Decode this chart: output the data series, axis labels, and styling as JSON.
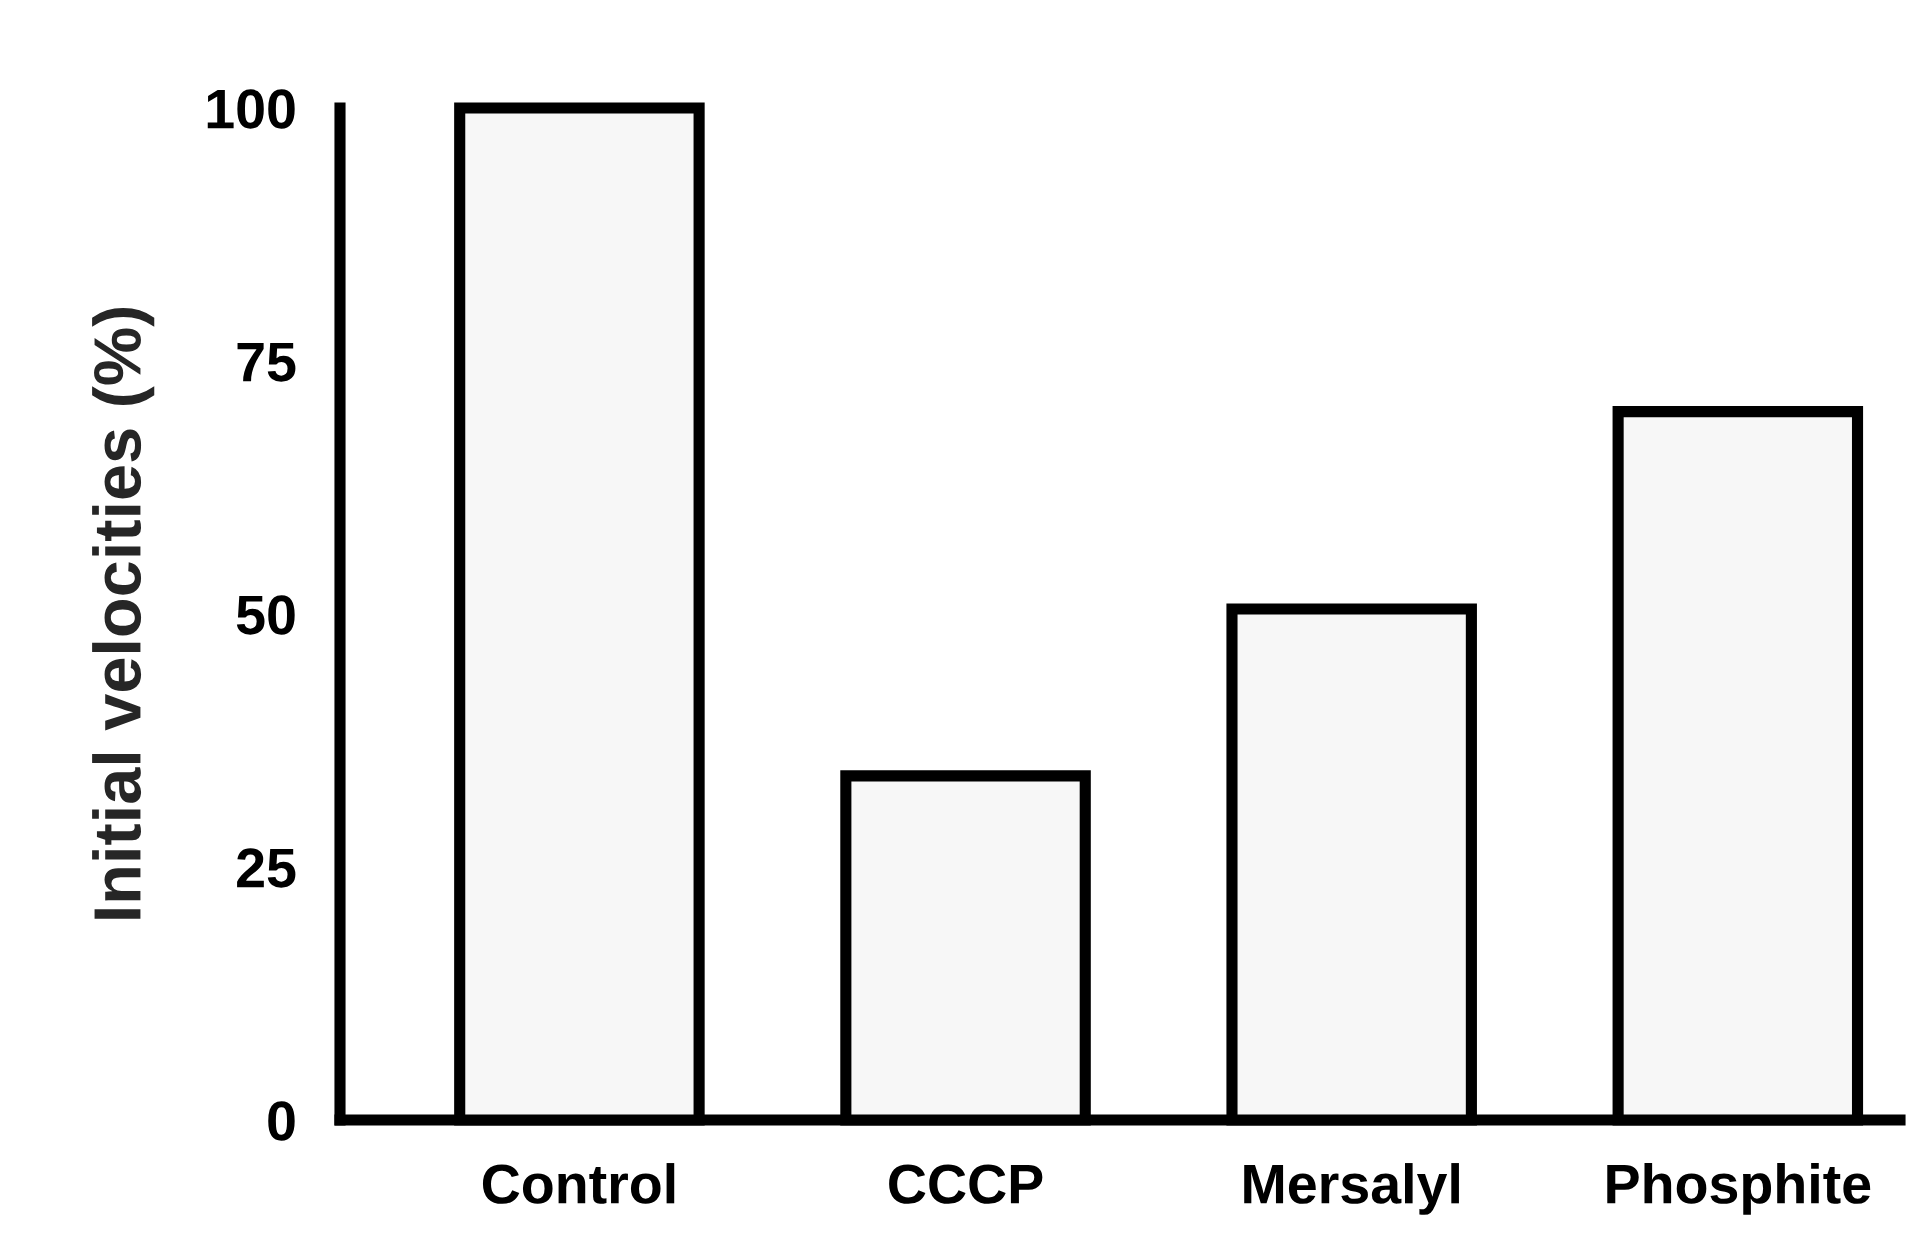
{
  "chart_data": {
    "type": "bar",
    "ylabel": "Initial velocities (%)",
    "categories": [
      "Control",
      "CCCP",
      "Mersalyl",
      "Phosphite"
    ],
    "values": [
      100,
      34,
      50.5,
      70
    ],
    "color": "#f7f7f7",
    "ylim": [
      0,
      100
    ],
    "yticks": [
      0,
      25,
      50,
      75,
      100
    ],
    "grid": false
  }
}
